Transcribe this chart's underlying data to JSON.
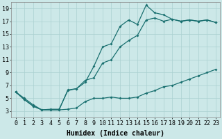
{
  "xlabel": "Humidex (Indice chaleur)",
  "xlim": [
    -0.5,
    23.5
  ],
  "ylim": [
    2,
    20
  ],
  "xticks": [
    0,
    1,
    2,
    3,
    4,
    5,
    6,
    7,
    8,
    9,
    10,
    11,
    12,
    13,
    14,
    15,
    16,
    17,
    18,
    19,
    20,
    21,
    22,
    23
  ],
  "yticks": [
    3,
    5,
    7,
    9,
    11,
    13,
    15,
    17,
    19
  ],
  "background_color": "#cce8e8",
  "grid_color": "#aad0d0",
  "line_color": "#1a7070",
  "line1_x": [
    0,
    1,
    2,
    3,
    4,
    5,
    6,
    7,
    8,
    9,
    10,
    11,
    12,
    13,
    14,
    15,
    16,
    17,
    18,
    19,
    20,
    21,
    22,
    23
  ],
  "line1_y": [
    6.0,
    4.8,
    3.8,
    3.2,
    3.2,
    3.2,
    3.3,
    3.5,
    4.5,
    5.0,
    5.0,
    5.2,
    5.0,
    5.0,
    5.2,
    5.8,
    6.2,
    6.8,
    7.0,
    7.5,
    8.0,
    8.5,
    9.0,
    9.5
  ],
  "line2_x": [
    0,
    1,
    2,
    3,
    4,
    5,
    6,
    7,
    8,
    9,
    10,
    11,
    12,
    13,
    14,
    15,
    16,
    17,
    18,
    19,
    20,
    21,
    22,
    23
  ],
  "line2_y": [
    6.0,
    4.8,
    3.8,
    3.2,
    3.2,
    3.2,
    6.3,
    6.5,
    7.8,
    8.2,
    10.5,
    11.0,
    13.0,
    14.0,
    14.8,
    17.2,
    17.5,
    17.0,
    17.3,
    17.0,
    17.2,
    17.0,
    17.2,
    16.8
  ],
  "line3_x": [
    0,
    1,
    2,
    3,
    4,
    5,
    6,
    7,
    8,
    9,
    10,
    11,
    12,
    13,
    14,
    15,
    16,
    17,
    18,
    19,
    20,
    21,
    22,
    23
  ],
  "line3_y": [
    6.0,
    5.0,
    4.0,
    3.2,
    3.3,
    3.3,
    6.2,
    6.5,
    7.5,
    10.0,
    13.0,
    13.5,
    16.2,
    17.2,
    16.5,
    19.5,
    18.3,
    18.0,
    17.3,
    17.0,
    17.2,
    17.0,
    17.2,
    16.8
  ],
  "tick_fontsize": 6,
  "xlabel_fontsize": 7
}
